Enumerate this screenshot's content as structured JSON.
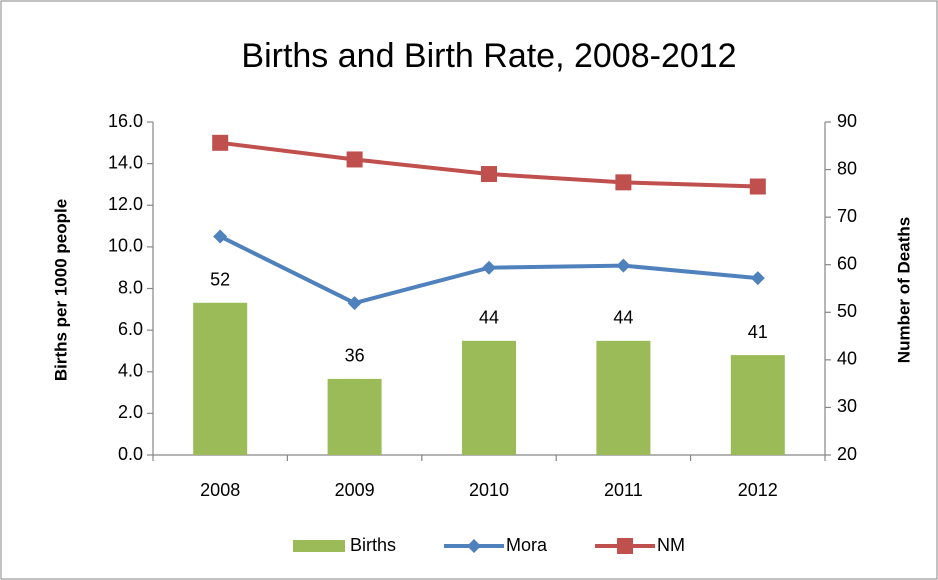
{
  "chart_data": {
    "type": "bar",
    "title": "Births and Birth Rate, 2008-2012",
    "y_label": "Births per 1000 people",
    "y2_label": "Number of Deaths",
    "categories": [
      "2008",
      "2009",
      "2010",
      "2011",
      "2012"
    ],
    "series": [
      {
        "name": "Births",
        "type": "bar",
        "axis": "y2",
        "color": "#9bbb59",
        "values": [
          52,
          36,
          44,
          44,
          41
        ]
      },
      {
        "name": "Mora",
        "type": "line",
        "marker": "diamond",
        "color": "#4f81bd",
        "values": [
          10.5,
          7.3,
          9.0,
          9.1,
          8.5
        ]
      },
      {
        "name": "NM",
        "type": "line",
        "marker": "square",
        "color": "#c0504d",
        "values": [
          15.0,
          14.2,
          13.5,
          13.1,
          12.9
        ]
      }
    ],
    "ylim": [
      0,
      16
    ],
    "yticks": [
      {
        "value": 0,
        "label": "0.0"
      },
      {
        "value": 2,
        "label": "2.0"
      },
      {
        "value": 4,
        "label": "4.0"
      },
      {
        "value": 6,
        "label": "6.0"
      },
      {
        "value": 8,
        "label": "8.0"
      },
      {
        "value": 10,
        "label": "10.0"
      },
      {
        "value": 12,
        "label": "12.0"
      },
      {
        "value": 14,
        "label": "14.0"
      },
      {
        "value": 16,
        "label": "16.0"
      }
    ],
    "y2lim": [
      20,
      90
    ],
    "y2ticks": [
      20,
      30,
      40,
      50,
      60,
      70,
      80,
      90
    ],
    "legend": "bottom"
  }
}
